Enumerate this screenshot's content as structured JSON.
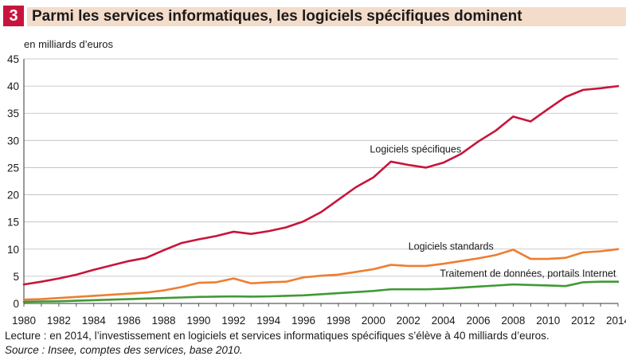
{
  "header": {
    "badge": "3",
    "title": "Parmi les services informatiques, les logiciels spécifiques dominent"
  },
  "colors": {
    "badge": "#c8143c",
    "band": "#f4dccb",
    "series": [
      "#c8143c",
      "#ee7d31",
      "#3f9a34"
    ]
  },
  "chart_data": {
    "type": "line",
    "ylabel": "en milliards d’euros",
    "xlim": [
      1980,
      2014
    ],
    "ylim": [
      0,
      45
    ],
    "yticks": [
      0,
      5,
      10,
      15,
      20,
      25,
      30,
      35,
      40,
      45
    ],
    "xticks": [
      1980,
      1982,
      1984,
      1986,
      1988,
      1990,
      1992,
      1994,
      1996,
      1998,
      2000,
      2002,
      2004,
      2006,
      2008,
      2010,
      2012,
      2014
    ],
    "grid": true,
    "x": [
      1980,
      1981,
      1982,
      1983,
      1984,
      1985,
      1986,
      1987,
      1988,
      1989,
      1990,
      1991,
      1992,
      1993,
      1994,
      1995,
      1996,
      1997,
      1998,
      1999,
      2000,
      2001,
      2002,
      2003,
      2004,
      2005,
      2006,
      2007,
      2008,
      2009,
      2010,
      2011,
      2012,
      2013,
      2014
    ],
    "series": [
      {
        "name": "Logiciels spécifiques",
        "values": [
          3.5,
          4.0,
          4.6,
          5.3,
          6.2,
          7.0,
          7.8,
          8.4,
          9.8,
          11.1,
          11.8,
          12.4,
          13.2,
          12.8,
          13.3,
          14.0,
          15.1,
          16.8,
          19.1,
          21.4,
          23.2,
          26.1,
          25.5,
          25.0,
          25.9,
          27.5,
          29.8,
          31.8,
          34.4,
          33.5,
          35.8,
          38.0,
          39.3,
          39.6,
          40.0
        ]
      },
      {
        "name": "Logiciels standards",
        "values": [
          0.7,
          0.8,
          1.0,
          1.2,
          1.4,
          1.6,
          1.8,
          2.0,
          2.4,
          3.0,
          3.8,
          3.9,
          4.6,
          3.7,
          3.9,
          4.0,
          4.8,
          5.1,
          5.3,
          5.8,
          6.3,
          7.1,
          6.9,
          6.9,
          7.3,
          7.8,
          8.3,
          8.9,
          9.9,
          8.2,
          8.2,
          8.4,
          9.4,
          9.6,
          10.0
        ]
      },
      {
        "name": "Traitement de données, portails Internet",
        "values": [
          0.3,
          0.35,
          0.4,
          0.5,
          0.6,
          0.7,
          0.8,
          0.9,
          1.0,
          1.1,
          1.2,
          1.25,
          1.3,
          1.25,
          1.3,
          1.4,
          1.5,
          1.7,
          1.9,
          2.1,
          2.3,
          2.6,
          2.6,
          2.6,
          2.7,
          2.9,
          3.1,
          3.3,
          3.5,
          3.4,
          3.3,
          3.2,
          3.9,
          4.0,
          4.0
        ]
      }
    ]
  },
  "notes": {
    "reading": "Lecture : en 2014, l’investissement en logiciels et services informatiques spécifiques s’élève à 40 milliards d’euros.",
    "source": "Source : Insee, comptes des services, base 2010."
  }
}
